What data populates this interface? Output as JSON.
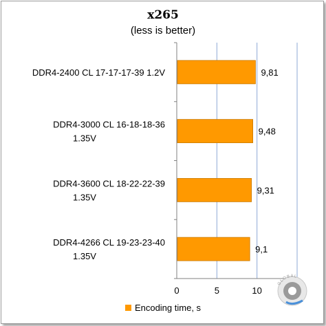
{
  "chart_data": {
    "type": "bar",
    "orientation": "horizontal",
    "title": "x265",
    "subtitle": "(less is better)",
    "categories": [
      "DDR4-2400 CL 17-17-17-39 1.2V",
      "DDR4-3000 CL 16-18-18-36 1.35V",
      "DDR4-3600 CL 18-22-22-39 1.35V",
      "DDR4-4266 CL 19-23-23-40 1.35V"
    ],
    "category_lines": [
      [
        "DDR4-2400 CL 17-17-17-39 1.2V"
      ],
      [
        "DDR4-3000 CL 16-18-18-36",
        "1.35V"
      ],
      [
        "DDR4-3600 CL 18-22-22-39",
        "1.35V"
      ],
      [
        "DDR4-4266 CL 19-23-23-40",
        "1.35V"
      ]
    ],
    "series": [
      {
        "name": "Encoding time, s",
        "values": [
          9.81,
          9.48,
          9.31,
          9.1
        ],
        "color": "#ff9900"
      }
    ],
    "value_labels": [
      "9,81",
      "9,48",
      "9,31",
      "9,1"
    ],
    "xlim": [
      0,
      15
    ],
    "xticks": [
      0,
      5,
      10,
      15
    ],
    "grid": true,
    "legend_position": "bottom"
  },
  "colors": {
    "bar": "#ff9900",
    "bar_edge": "#c87800",
    "grid": "#8ea9d6",
    "axis": "#808080"
  },
  "watermark": {
    "icon": "gecid-logo-icon",
    "text_top": "GLOBAL",
    "text_bottom": "www.gecid.com"
  }
}
